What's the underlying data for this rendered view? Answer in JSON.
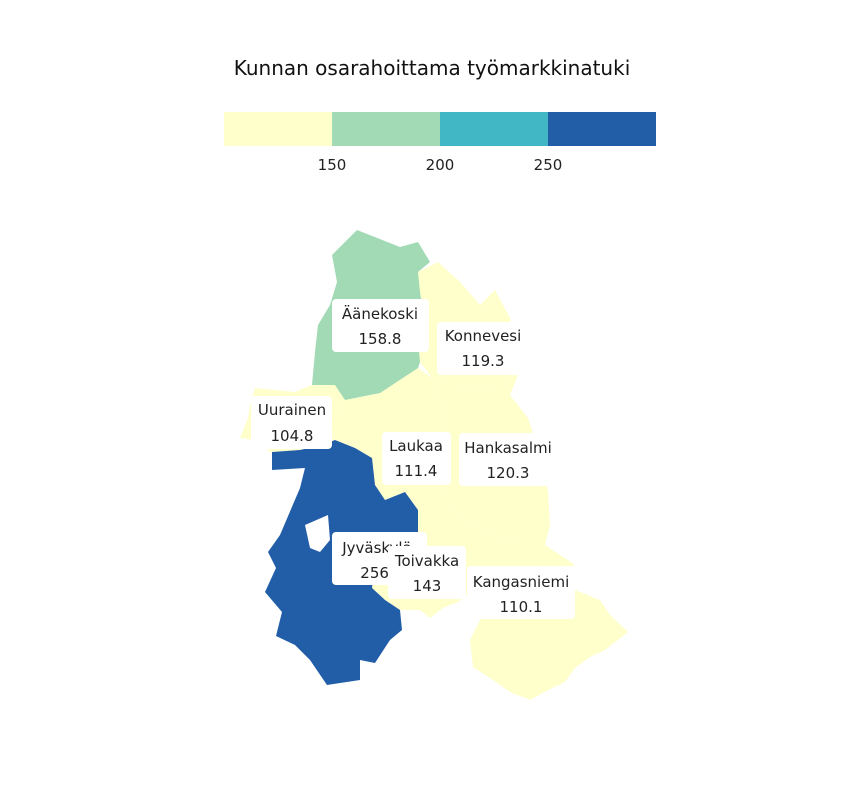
{
  "title": "Kunnan osarahoittama työmarkkinatuki",
  "legend": {
    "bins": [
      {
        "color": "#ffffcc"
      },
      {
        "color": "#a1dab4"
      },
      {
        "color": "#41b6c4"
      },
      {
        "color": "#225ea8"
      }
    ],
    "breaks": [
      "150",
      "200",
      "250"
    ]
  },
  "municipalities": [
    {
      "name": "Äänekoski",
      "value": "158.8",
      "color": "#a1dab4"
    },
    {
      "name": "Konnevesi",
      "value": "119.3",
      "color": "#ffffcc"
    },
    {
      "name": "Uurainen",
      "value": "104.8",
      "color": "#ffffcc"
    },
    {
      "name": "Laukaa",
      "value": "111.4",
      "color": "#ffffcc"
    },
    {
      "name": "Hankasalmi",
      "value": "120.3",
      "color": "#ffffcc"
    },
    {
      "name": "Jyväskylä",
      "value": "256.",
      "color": "#225ea8"
    },
    {
      "name": "Toivakka",
      "value": "143",
      "color": "#ffffcc"
    },
    {
      "name": "Kangasniemi",
      "value": "110.1",
      "color": "#ffffcc"
    }
  ]
}
